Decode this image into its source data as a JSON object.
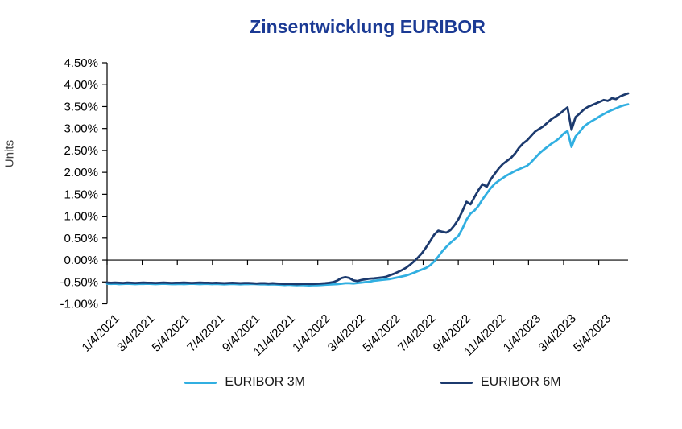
{
  "title": "Zinsentwicklung EURIBOR",
  "y_axis_title": "Units",
  "colors": {
    "title": "#1b3a94",
    "axis": "#000000",
    "euribor_3m": "#31afe1",
    "euribor_6m": "#1c3a6e"
  },
  "legend": {
    "items": [
      {
        "label": "EURIBOR 3M",
        "color": "#31afe1"
      },
      {
        "label": "EURIBOR 6M",
        "color": "#1c3a6e"
      }
    ]
  },
  "chart_data": {
    "type": "line",
    "title": "Zinsentwicklung EURIBOR",
    "xlabel": "",
    "ylabel": "Units",
    "ylim": [
      -1.0,
      4.5
    ],
    "ytick_step": 0.5,
    "ytick_labels": [
      "4.50%",
      "4.00%",
      "3.50%",
      "3.00%",
      "2.50%",
      "2.00%",
      "1.50%",
      "1.00%",
      "0.50%",
      "0.00%",
      "-0.50%",
      "-1.00%"
    ],
    "xtick_labels": [
      "1/4/2021",
      "3/4/2021",
      "5/4/2021",
      "7/4/2021",
      "9/4/2021",
      "11/4/2021",
      "1/4/2022",
      "3/4/2022",
      "5/4/2022",
      "7/4/2022",
      "9/4/2022",
      "11/4/2022",
      "1/4/2023",
      "3/4/2023",
      "5/4/2023"
    ],
    "xtick_interval_months": 2,
    "x_total_months": 29.67,
    "x_sampling": "weekly values from 1/4/2021 to mid 6/2023",
    "grid": false,
    "zero_axis_line": true,
    "legend_position": "bottom",
    "series": [
      {
        "name": "EURIBOR 3M",
        "color": "#31afe1",
        "values": [
          -0.54,
          -0.545,
          -0.54,
          -0.55,
          -0.545,
          -0.54,
          -0.545,
          -0.55,
          -0.545,
          -0.545,
          -0.54,
          -0.545,
          -0.55,
          -0.545,
          -0.54,
          -0.545,
          -0.55,
          -0.55,
          -0.545,
          -0.55,
          -0.545,
          -0.54,
          -0.545,
          -0.55,
          -0.545,
          -0.545,
          -0.55,
          -0.545,
          -0.55,
          -0.555,
          -0.55,
          -0.545,
          -0.55,
          -0.555,
          -0.55,
          -0.55,
          -0.545,
          -0.55,
          -0.555,
          -0.555,
          -0.56,
          -0.555,
          -0.56,
          -0.565,
          -0.57,
          -0.565,
          -0.57,
          -0.575,
          -0.57,
          -0.575,
          -0.58,
          -0.575,
          -0.575,
          -0.57,
          -0.565,
          -0.56,
          -0.555,
          -0.55,
          -0.54,
          -0.53,
          -0.53,
          -0.535,
          -0.525,
          -0.515,
          -0.505,
          -0.495,
          -0.475,
          -0.465,
          -0.455,
          -0.445,
          -0.435,
          -0.415,
          -0.395,
          -0.375,
          -0.355,
          -0.325,
          -0.29,
          -0.25,
          -0.215,
          -0.18,
          -0.12,
          -0.03,
          0.08,
          0.2,
          0.3,
          0.39,
          0.47,
          0.55,
          0.72,
          0.92,
          1.06,
          1.13,
          1.24,
          1.39,
          1.52,
          1.64,
          1.74,
          1.81,
          1.87,
          1.93,
          1.98,
          2.03,
          2.07,
          2.11,
          2.15,
          2.23,
          2.33,
          2.43,
          2.51,
          2.58,
          2.65,
          2.71,
          2.78,
          2.88,
          2.94,
          2.58,
          2.82,
          2.92,
          3.04,
          3.11,
          3.17,
          3.22,
          3.28,
          3.33,
          3.38,
          3.42,
          3.46,
          3.5,
          3.53,
          3.55
        ]
      },
      {
        "name": "EURIBOR 6M",
        "color": "#1c3a6e",
        "values": [
          -0.515,
          -0.52,
          -0.515,
          -0.52,
          -0.525,
          -0.515,
          -0.52,
          -0.525,
          -0.52,
          -0.515,
          -0.52,
          -0.52,
          -0.525,
          -0.52,
          -0.515,
          -0.52,
          -0.525,
          -0.52,
          -0.52,
          -0.515,
          -0.52,
          -0.525,
          -0.52,
          -0.515,
          -0.52,
          -0.52,
          -0.525,
          -0.52,
          -0.525,
          -0.53,
          -0.525,
          -0.52,
          -0.525,
          -0.53,
          -0.525,
          -0.525,
          -0.53,
          -0.535,
          -0.53,
          -0.53,
          -0.535,
          -0.53,
          -0.535,
          -0.54,
          -0.545,
          -0.54,
          -0.545,
          -0.55,
          -0.545,
          -0.54,
          -0.545,
          -0.545,
          -0.54,
          -0.535,
          -0.53,
          -0.52,
          -0.505,
          -0.47,
          -0.415,
          -0.39,
          -0.41,
          -0.465,
          -0.48,
          -0.455,
          -0.44,
          -0.425,
          -0.42,
          -0.41,
          -0.4,
          -0.385,
          -0.35,
          -0.315,
          -0.275,
          -0.23,
          -0.18,
          -0.11,
          -0.03,
          0.06,
          0.16,
          0.29,
          0.43,
          0.58,
          0.67,
          0.645,
          0.625,
          0.68,
          0.79,
          0.93,
          1.12,
          1.33,
          1.27,
          1.44,
          1.6,
          1.73,
          1.67,
          1.84,
          1.97,
          2.09,
          2.19,
          2.26,
          2.33,
          2.43,
          2.56,
          2.66,
          2.73,
          2.83,
          2.93,
          2.99,
          3.05,
          3.13,
          3.21,
          3.27,
          3.33,
          3.41,
          3.48,
          2.97,
          3.26,
          3.34,
          3.43,
          3.49,
          3.53,
          3.57,
          3.61,
          3.65,
          3.63,
          3.69,
          3.67,
          3.73,
          3.77,
          3.8
        ]
      }
    ]
  }
}
